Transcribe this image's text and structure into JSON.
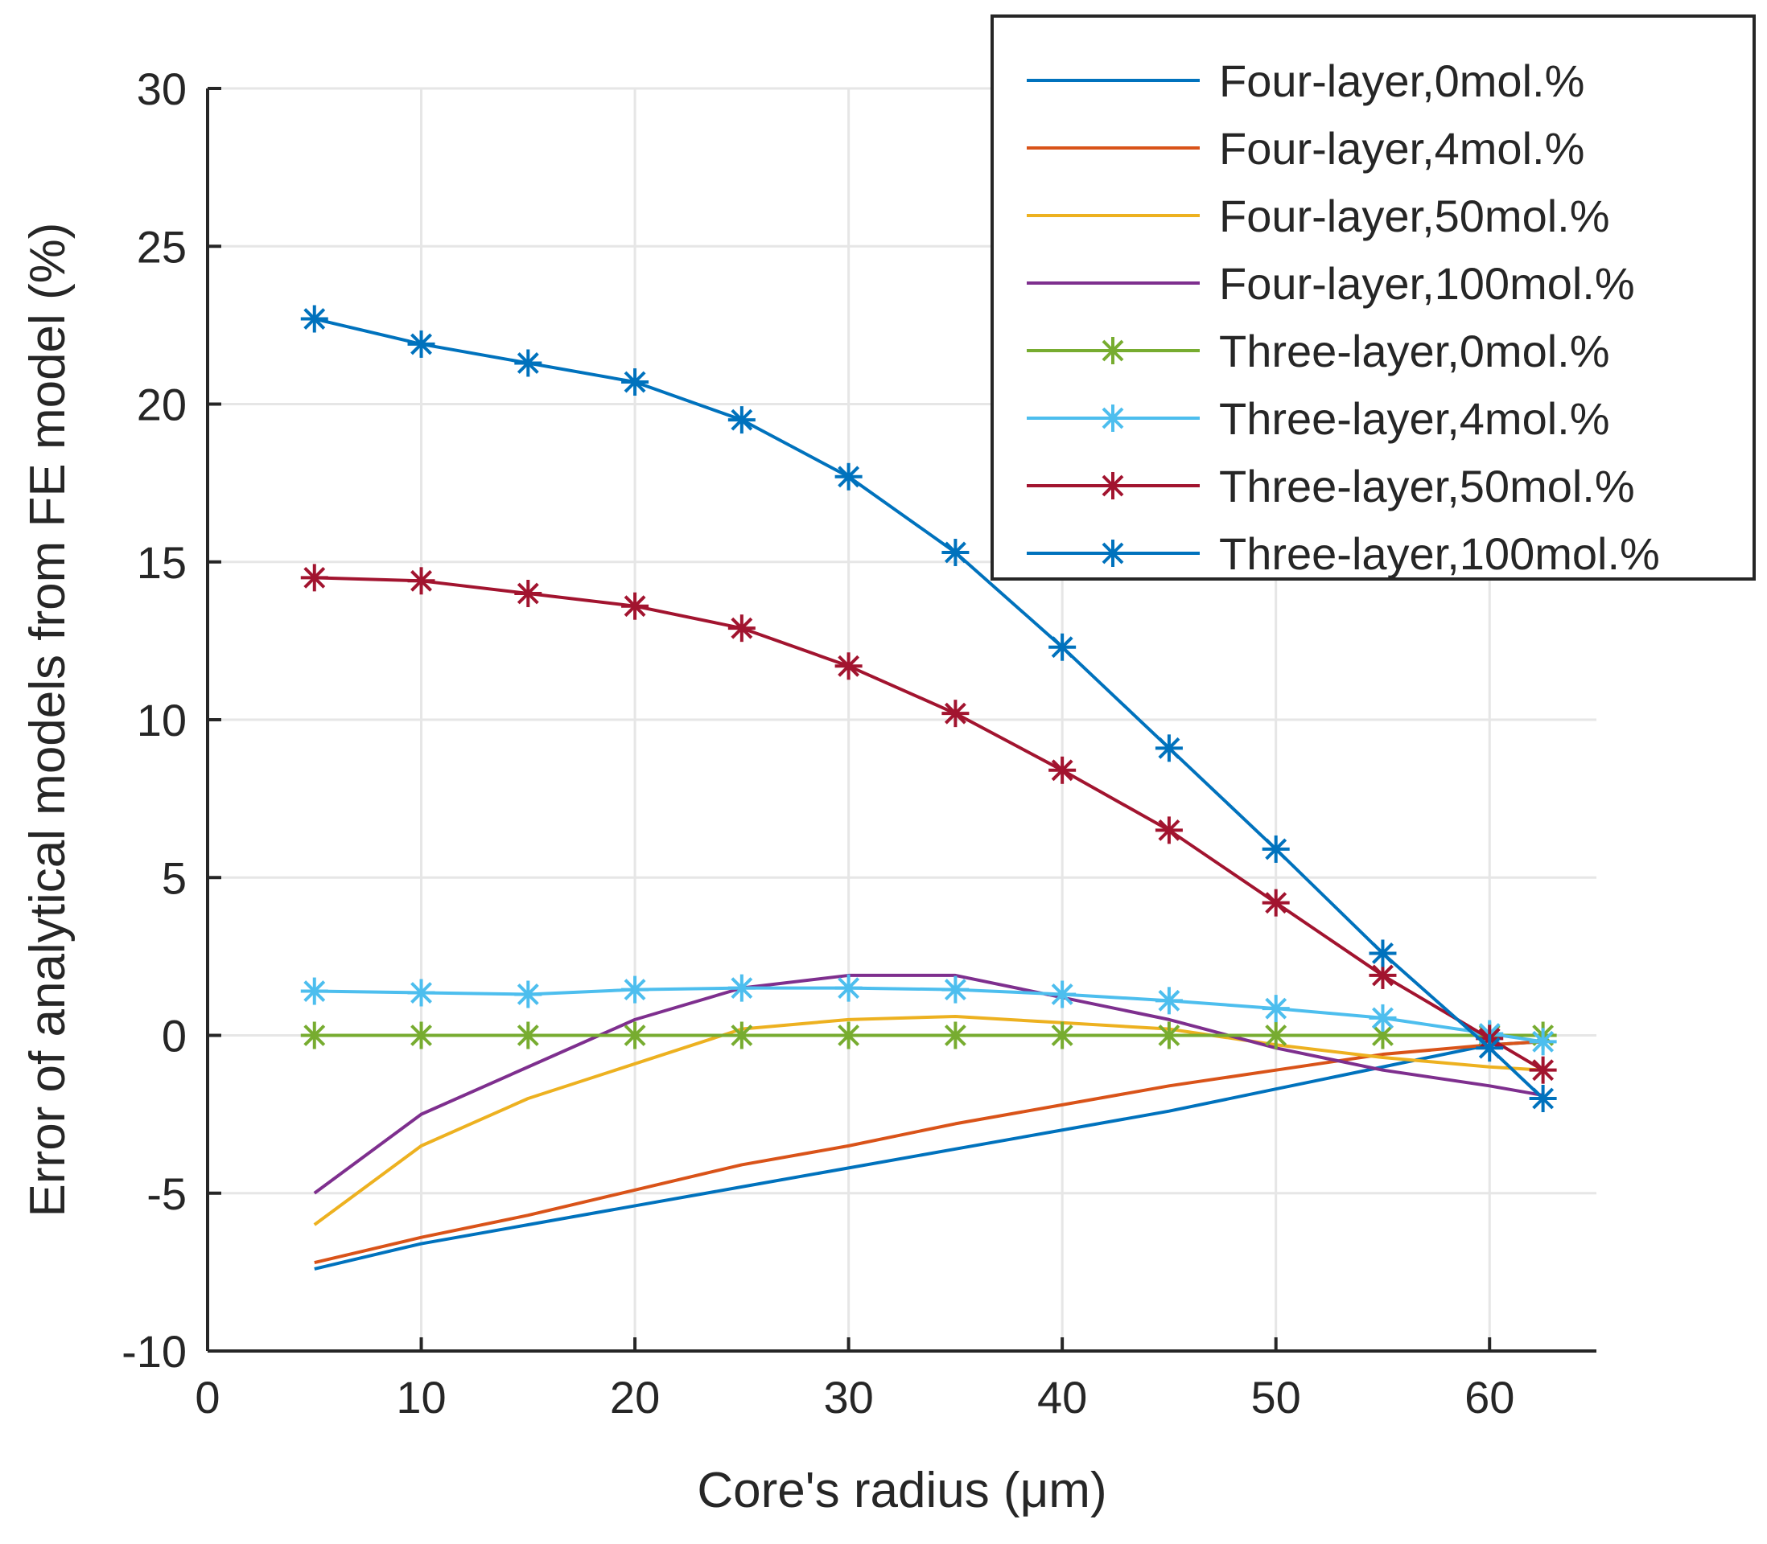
{
  "chart_data": {
    "type": "line",
    "xlabel": "Core's radius (μm)",
    "ylabel": "Error of analytical models from FE model (%)",
    "xlim": [
      0,
      65
    ],
    "ylim": [
      -10,
      30
    ],
    "xticks": [
      0,
      10,
      20,
      30,
      40,
      50,
      60
    ],
    "yticks": [
      -10,
      -5,
      0,
      5,
      10,
      15,
      20,
      25,
      30
    ],
    "grid": true,
    "legend_position": "top-right",
    "x": [
      5,
      10,
      15,
      20,
      25,
      30,
      35,
      40,
      45,
      50,
      55,
      60,
      62.5
    ],
    "series": [
      {
        "name": "Four-layer,0mol.%",
        "color": "#0072BD",
        "marker": "none",
        "values": [
          -7.4,
          -6.6,
          -6.0,
          -5.4,
          -4.8,
          -4.2,
          -3.6,
          -3.0,
          -2.4,
          -1.7,
          -1.0,
          -0.3,
          -0.2
        ]
      },
      {
        "name": "Four-layer,4mol.%",
        "color": "#D95319",
        "marker": "none",
        "values": [
          -7.2,
          -6.4,
          -5.7,
          -4.9,
          -4.1,
          -3.5,
          -2.8,
          -2.2,
          -1.6,
          -1.1,
          -0.6,
          -0.3,
          -0.2
        ]
      },
      {
        "name": "Four-layer,50mol.%",
        "color": "#EDB120",
        "marker": "none",
        "values": [
          -6.0,
          -3.5,
          -2.0,
          -0.9,
          0.2,
          0.5,
          0.6,
          0.4,
          0.2,
          -0.3,
          -0.7,
          -1.0,
          -1.1
        ]
      },
      {
        "name": "Four-layer,100mol.%",
        "color": "#7E2F8E",
        "marker": "none",
        "values": [
          -5.0,
          -2.5,
          -1.0,
          0.5,
          1.5,
          1.9,
          1.9,
          1.2,
          0.5,
          -0.4,
          -1.1,
          -1.6,
          -1.9
        ]
      },
      {
        "name": "Three-layer,0mol.%",
        "color": "#77AC30",
        "marker": "asterisk",
        "values": [
          0,
          0,
          0,
          0,
          0,
          0,
          0,
          0,
          0,
          0,
          0,
          0,
          0
        ]
      },
      {
        "name": "Three-layer,4mol.%",
        "color": "#4DBEEE",
        "marker": "asterisk",
        "values": [
          1.4,
          1.35,
          1.3,
          1.45,
          1.5,
          1.5,
          1.45,
          1.3,
          1.1,
          0.85,
          0.55,
          0.05,
          -0.2
        ]
      },
      {
        "name": "Three-layer,50mol.%",
        "color": "#A2142F",
        "marker": "asterisk",
        "values": [
          14.5,
          14.4,
          14.0,
          13.6,
          12.9,
          11.7,
          10.2,
          8.4,
          6.5,
          4.2,
          1.9,
          -0.1,
          -1.1
        ]
      },
      {
        "name": "Three-layer,100mol.%",
        "color": "#0072BD",
        "marker": "asterisk",
        "values": [
          22.7,
          21.9,
          21.3,
          20.7,
          19.5,
          17.7,
          15.3,
          12.3,
          9.1,
          5.9,
          2.6,
          -0.4,
          -2.0
        ]
      }
    ]
  }
}
